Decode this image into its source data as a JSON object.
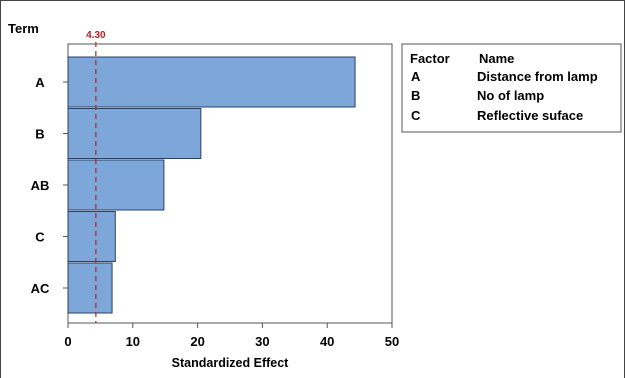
{
  "chart_data": {
    "type": "bar",
    "orientation": "horizontal",
    "yaxis_title": "Term",
    "xlabel": "Standardized Effect",
    "categories": [
      "A",
      "B",
      "AB",
      "C",
      "AC"
    ],
    "values": [
      44.3,
      20.5,
      14.8,
      7.3,
      6.8
    ],
    "xlim": [
      0,
      50
    ],
    "xticks": [
      "0",
      "10",
      "20",
      "30",
      "40",
      "50"
    ],
    "reference_line": {
      "value": 4.3,
      "label": "4.30",
      "color": "#b22222"
    },
    "bar_color": "#7da7d9",
    "bar_edge_color": "#2b3f63",
    "grid": false,
    "legend": {
      "placement": "right",
      "headers": [
        "Factor",
        "Name"
      ],
      "rows": [
        {
          "factor": "A",
          "name": "Distance from lamp"
        },
        {
          "factor": "B",
          "name": "No of lamp"
        },
        {
          "factor": "C",
          "name": "Reflective suface"
        }
      ]
    }
  }
}
